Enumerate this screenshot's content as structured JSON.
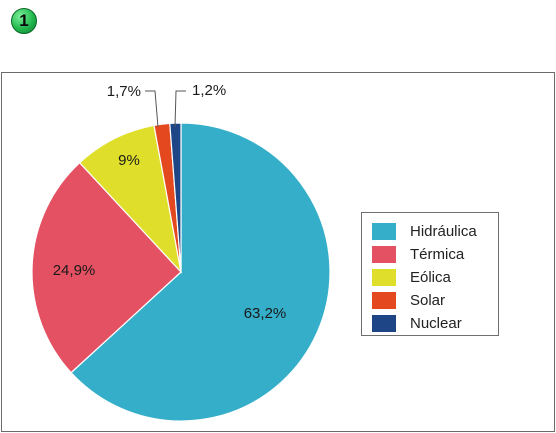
{
  "badge": {
    "label": "1"
  },
  "colors": {
    "Hidráulica": "#35aec9",
    "Térmica": "#e45162",
    "Eólica": "#dfdf2b",
    "Solar": "#e3481f",
    "Nuclear": "#1e4585"
  },
  "chart_data": {
    "type": "pie",
    "categories": [
      "Hidráulica",
      "Térmica",
      "Eólica",
      "Solar",
      "Nuclear"
    ],
    "values": [
      63.2,
      24.9,
      9,
      1.7,
      1.2
    ],
    "labels": [
      "63,2%",
      "24,9%",
      "9%",
      "1,7%",
      "1,2%"
    ],
    "start_angle_deg": 0,
    "direction": "clockwise",
    "legend_position": "right",
    "title": ""
  },
  "legend": {
    "items": [
      {
        "label": "Hidráulica",
        "color": "#35aec9"
      },
      {
        "label": "Térmica",
        "color": "#e45162"
      },
      {
        "label": "Eólica",
        "color": "#dfdf2b"
      },
      {
        "label": "Solar",
        "color": "#e3481f"
      },
      {
        "label": "Nuclear",
        "color": "#1e4585"
      }
    ]
  }
}
